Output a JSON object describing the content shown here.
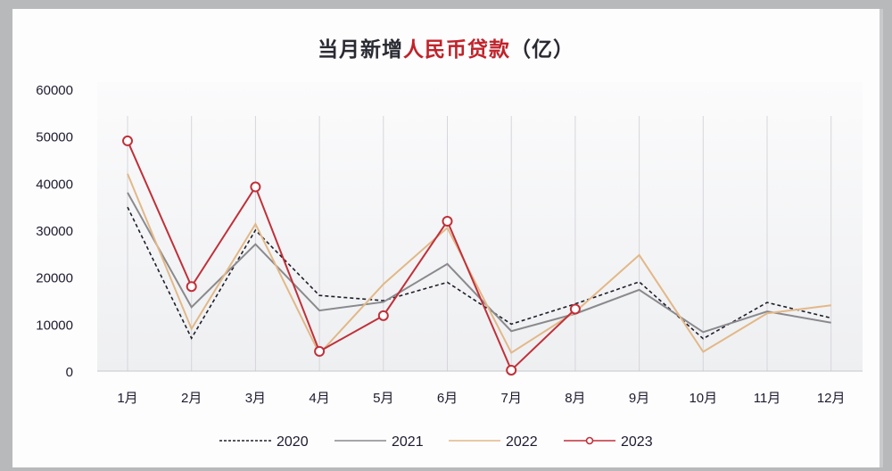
{
  "chart_data": {
    "type": "line",
    "title": "当月新增人民币贷款（亿）",
    "title_parts": {
      "black_prefix": "当月新增",
      "red_part": "人民币贷款",
      "black_suffix": "（亿）"
    },
    "xlabel": "",
    "ylabel": "",
    "ylim": [
      0,
      60000
    ],
    "yticks": [
      "60000",
      "50000",
      "40000",
      "30000",
      "20000",
      "10000",
      "0"
    ],
    "categories": [
      "1月",
      "2月",
      "3月",
      "4月",
      "5月",
      "6月",
      "7月",
      "8月",
      "9月",
      "10月",
      "11月",
      "12月"
    ],
    "grid": "vertical lines at categories",
    "legend_position": "bottom",
    "series": [
      {
        "name": "2020",
        "style": "dashed",
        "color": "#1e1e2a",
        "values": [
          34900,
          7000,
          30000,
          16100,
          15000,
          18900,
          10000,
          14300,
          19000,
          6900,
          14600,
          11300
        ]
      },
      {
        "name": "2021",
        "style": "solid",
        "color": "#8a8a8e",
        "values": [
          38000,
          13600,
          27000,
          12900,
          14700,
          22800,
          8500,
          12200,
          17300,
          8300,
          12700,
          10300
        ]
      },
      {
        "name": "2022",
        "style": "solid",
        "color": "#e2b888",
        "values": [
          42000,
          9000,
          31300,
          3700,
          18500,
          30500,
          3900,
          12600,
          24700,
          4100,
          12300,
          14000
        ]
      },
      {
        "name": "2023",
        "style": "solid-marker",
        "color": "#c0303a",
        "values": [
          49000,
          18000,
          39200,
          4200,
          11800,
          31900,
          200,
          13200
        ]
      }
    ]
  }
}
